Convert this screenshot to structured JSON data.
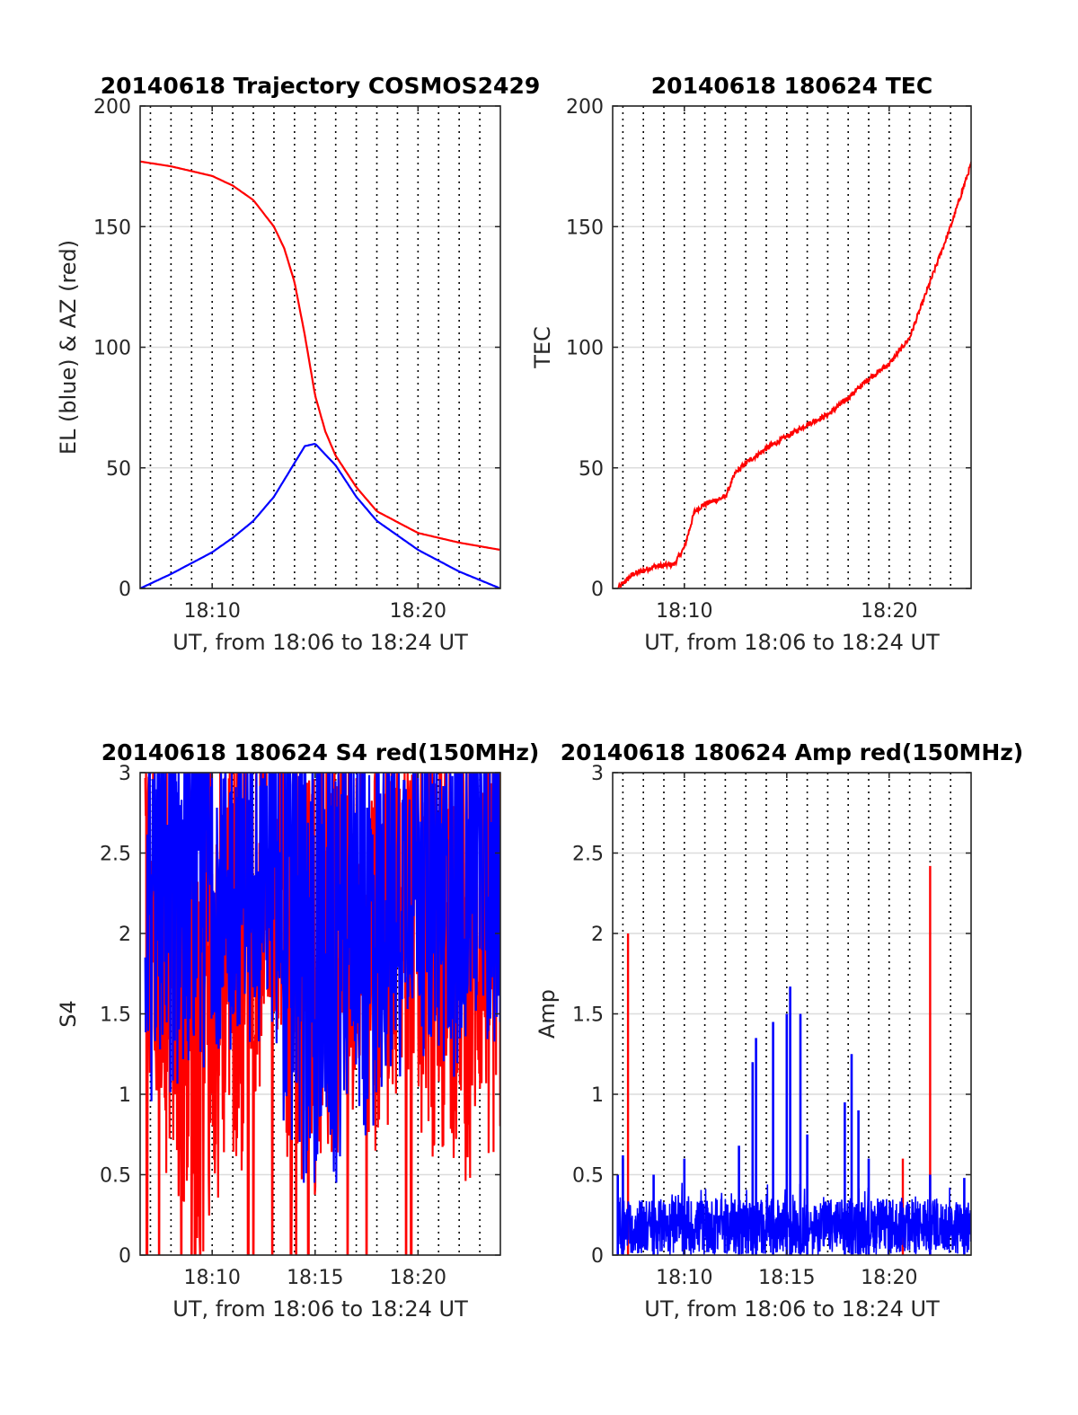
{
  "colors": {
    "red": "#ff0000",
    "blue": "#0000ff",
    "grid": "#dcdcdc",
    "axis": "#262626"
  },
  "chart_data": [
    {
      "type": "line",
      "title": "20140618 Trajectory COSMOS2429",
      "xlabel": "UT, from 18:06 to 18:24 UT",
      "ylabel": "EL (blue) & AZ (red)",
      "xlim": [
        "18:06:30",
        "18:24:00"
      ],
      "ylim": [
        0,
        200
      ],
      "yticks": [
        0,
        50,
        100,
        150,
        200
      ],
      "ytick_labels": [
        "0",
        "50",
        "100",
        "150",
        "200"
      ],
      "xticks": [
        "18:10",
        "18:20"
      ],
      "grid": "horizontal solid; vertical dotted each minute",
      "series": [
        {
          "color": "red",
          "x": [
            "18:06:30",
            "18:08:00",
            "18:10:00",
            "18:11:00",
            "18:12:00",
            "18:13:00",
            "18:13:30",
            "18:14:00",
            "18:14:30",
            "18:15:00",
            "18:15:30",
            "18:16:00",
            "18:17:00",
            "18:18:00",
            "18:20:00",
            "18:22:00",
            "18:24:00"
          ],
          "y": [
            177,
            175,
            171,
            167,
            161,
            150,
            141,
            127,
            105,
            80,
            65,
            55,
            42,
            32,
            23,
            19,
            16
          ]
        },
        {
          "color": "blue",
          "x": [
            "18:06:30",
            "18:08:00",
            "18:10:00",
            "18:11:00",
            "18:12:00",
            "18:13:00",
            "18:14:00",
            "18:14:30",
            "18:15:00",
            "18:16:00",
            "18:17:00",
            "18:18:00",
            "18:20:00",
            "18:22:00",
            "18:24:00"
          ],
          "y": [
            0,
            6,
            15,
            21,
            28,
            38,
            52,
            59,
            60,
            51,
            38,
            28,
            16,
            7,
            0
          ]
        }
      ]
    },
    {
      "type": "line",
      "title": "20140618 180624 TEC",
      "xlabel": "UT, from 18:06 to 18:24 UT",
      "ylabel": "TEC",
      "xlim": [
        "18:06:30",
        "18:24:00"
      ],
      "ylim": [
        0,
        200
      ],
      "yticks": [
        0,
        50,
        100,
        150,
        200
      ],
      "ytick_labels": [
        "0",
        "50",
        "100",
        "150",
        "200"
      ],
      "xticks": [
        "18:10",
        "18:20"
      ],
      "grid": "horizontal solid; vertical dotted each minute",
      "series": [
        {
          "color": "red",
          "x": [
            "18:06:45",
            "18:07:30",
            "18:08:30",
            "18:09:30",
            "18:10:00",
            "18:10:30",
            "18:11:00",
            "18:12:00",
            "18:12:30",
            "18:13:00",
            "18:14:00",
            "18:15:00",
            "18:16:00",
            "18:17:00",
            "18:18:00",
            "18:19:00",
            "18:20:00",
            "18:21:00",
            "18:22:00",
            "18:23:00",
            "18:24:00"
          ],
          "y": [
            0,
            6,
            9,
            10,
            17,
            32,
            35,
            38,
            48,
            52,
            58,
            63,
            68,
            72,
            79,
            87,
            93,
            104,
            127,
            150,
            176
          ]
        }
      ]
    },
    {
      "type": "line",
      "title": "20140618 180624 S4 red(150MHz)",
      "xlabel": "UT, from 18:06 to 18:24 UT",
      "ylabel": "S4",
      "xlim": [
        "18:06:30",
        "18:24:00"
      ],
      "ylim": [
        0,
        3
      ],
      "yticks": [
        0,
        0.5,
        1,
        1.5,
        2,
        2.5,
        3
      ],
      "ytick_labels": [
        "0",
        "0.5",
        "1",
        "1.5",
        "2",
        "2.5",
        "3"
      ],
      "xticks": [
        "18:10",
        "18:15",
        "18:20"
      ],
      "grid": "horizontal solid; vertical dotted each minute",
      "series": [
        {
          "color": "red",
          "x_range": [
            "18:06:45",
            "18:24:00"
          ],
          "min": 0,
          "max": 3,
          "envelope_low": [
            1.2,
            0.6,
            0.3,
            0.5,
            0.8,
            1.3,
            1.4,
            0.7,
            0.6,
            0.9,
            1.2,
            0.8,
            1.0,
            1.2,
            0.9,
            0.9,
            0.7,
            0.9
          ],
          "drop_to_zero_at": [
            "18:06:50",
            "18:07:25",
            "18:08:30",
            "18:09:00",
            "18:09:10",
            "18:09:25",
            "18:11:45",
            "18:12:00",
            "18:12:55",
            "18:13:50",
            "18:14:05",
            "18:14:40",
            "18:16:35",
            "18:17:30",
            "18:19:25",
            "18:19:40"
          ]
        },
        {
          "color": "blue",
          "x_range": [
            "18:06:45",
            "18:24:00"
          ],
          "min": 0.45,
          "max": 3,
          "envelope_low": [
            1.2,
            1.3,
            1.4,
            1.5,
            1.4,
            1.6,
            1.5,
            0.9,
            0.5,
            0.6,
            1.2,
            0.9,
            1.3,
            1.5,
            1.5,
            1.4,
            1.5,
            1.6
          ]
        }
      ]
    },
    {
      "type": "line",
      "title": "20140618 180624 Amp red(150MHz)",
      "xlabel": "UT, from 18:06 to 18:24 UT",
      "ylabel": "Amp",
      "xlim": [
        "18:06:30",
        "18:24:00"
      ],
      "ylim": [
        0,
        3
      ],
      "yticks": [
        0,
        0.5,
        1,
        1.5,
        2,
        2.5,
        3
      ],
      "ytick_labels": [
        "0",
        "0.5",
        "1",
        "1.5",
        "2",
        "2.5",
        "3"
      ],
      "xticks": [
        "18:10",
        "18:15",
        "18:20"
      ],
      "grid": "horizontal solid; vertical dotted each minute",
      "series": [
        {
          "color": "red",
          "spikes": [
            {
              "x": "18:07:00",
              "y": 0.6
            },
            {
              "x": "18:07:15",
              "y": 2.0
            },
            {
              "x": "18:20:40",
              "y": 0.6
            },
            {
              "x": "18:22:00",
              "y": 2.42
            }
          ]
        },
        {
          "color": "blue",
          "baseline_max": 0.35,
          "spikes": [
            {
              "x": "18:06:45",
              "y": 0.5
            },
            {
              "x": "18:07:00",
              "y": 0.62
            },
            {
              "x": "18:08:30",
              "y": 0.5
            },
            {
              "x": "18:10:00",
              "y": 0.6
            },
            {
              "x": "18:12:40",
              "y": 0.68
            },
            {
              "x": "18:13:20",
              "y": 1.2
            },
            {
              "x": "18:13:30",
              "y": 1.35
            },
            {
              "x": "18:14:20",
              "y": 1.45
            },
            {
              "x": "18:15:00",
              "y": 1.5
            },
            {
              "x": "18:15:10",
              "y": 1.67
            },
            {
              "x": "18:15:40",
              "y": 1.5
            },
            {
              "x": "18:16:00",
              "y": 0.75
            },
            {
              "x": "18:17:50",
              "y": 0.95
            },
            {
              "x": "18:18:10",
              "y": 1.25
            },
            {
              "x": "18:18:30",
              "y": 0.9
            },
            {
              "x": "18:19:00",
              "y": 0.6
            },
            {
              "x": "18:22:00",
              "y": 0.5
            },
            {
              "x": "18:23:40",
              "y": 0.48
            }
          ]
        }
      ]
    }
  ]
}
